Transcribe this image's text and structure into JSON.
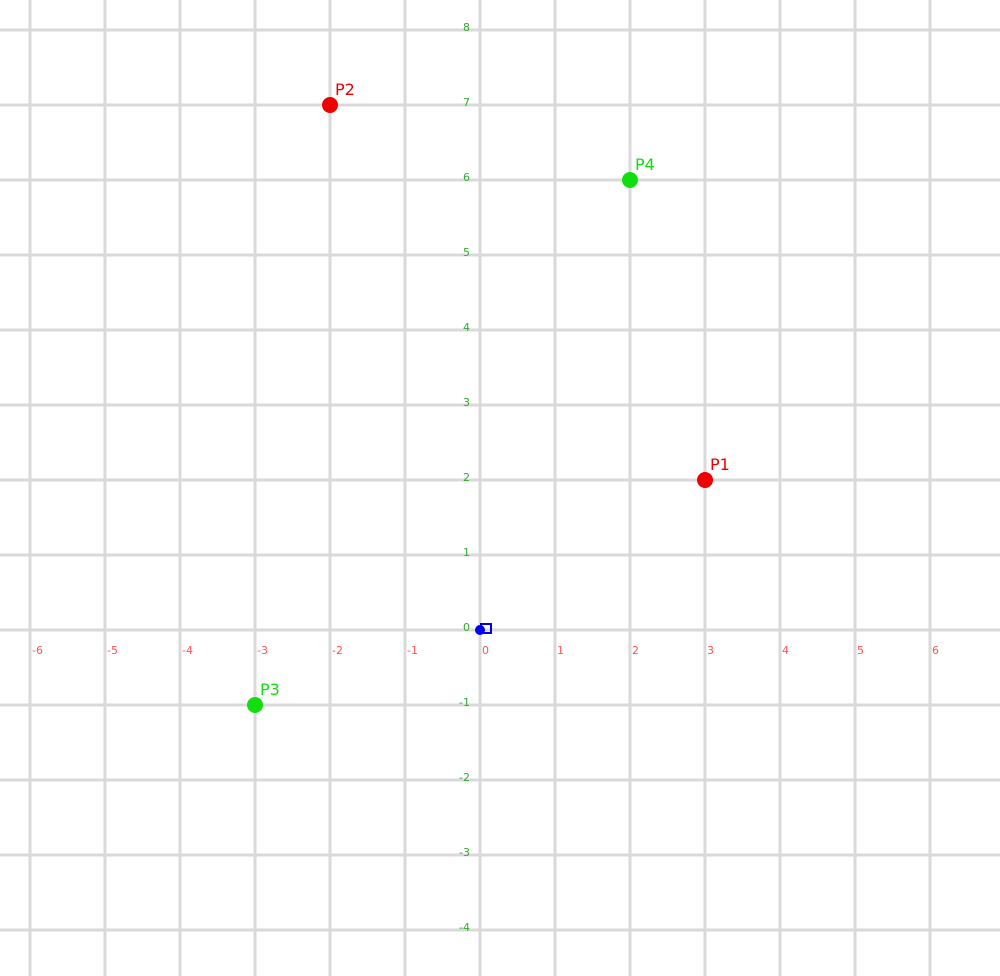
{
  "chart_data": {
    "type": "scatter",
    "xlim": [
      -6.4,
      6.9
    ],
    "ylim": [
      -4.6,
      8.4
    ],
    "grid": true,
    "x_ticks": [
      -6,
      -5,
      -4,
      -3,
      -2,
      -1,
      0,
      1,
      2,
      3,
      4,
      5,
      6
    ],
    "y_ticks": [
      -4,
      -3,
      -2,
      -1,
      0,
      1,
      2,
      3,
      4,
      5,
      6,
      7,
      8
    ],
    "x_tick_labels": [
      "-6",
      "-5",
      "-4",
      "-3",
      "-2",
      "-1",
      "0",
      "1",
      "2",
      "3",
      "4",
      "5",
      "6"
    ],
    "y_tick_labels": [
      "-4",
      "-3",
      "-2",
      "-1",
      "0",
      "1",
      "2",
      "3",
      "4",
      "5",
      "6",
      "7",
      "8"
    ],
    "colors": {
      "grid": "#d9d9d9",
      "x_ticks": "#ff5555",
      "y_ticks": "#33aa33",
      "origin": "#0000ee"
    },
    "points": [
      {
        "label": "P1",
        "x": 3,
        "y": 2,
        "color": "#ee0000"
      },
      {
        "label": "P2",
        "x": -2,
        "y": 7,
        "color": "#ee0000"
      },
      {
        "label": "P3",
        "x": -3,
        "y": -1,
        "color": "#11dd11"
      },
      {
        "label": "P4",
        "x": 2,
        "y": 6,
        "color": "#11dd11"
      }
    ],
    "origin_marker": {
      "x": 0,
      "y": 0
    }
  }
}
